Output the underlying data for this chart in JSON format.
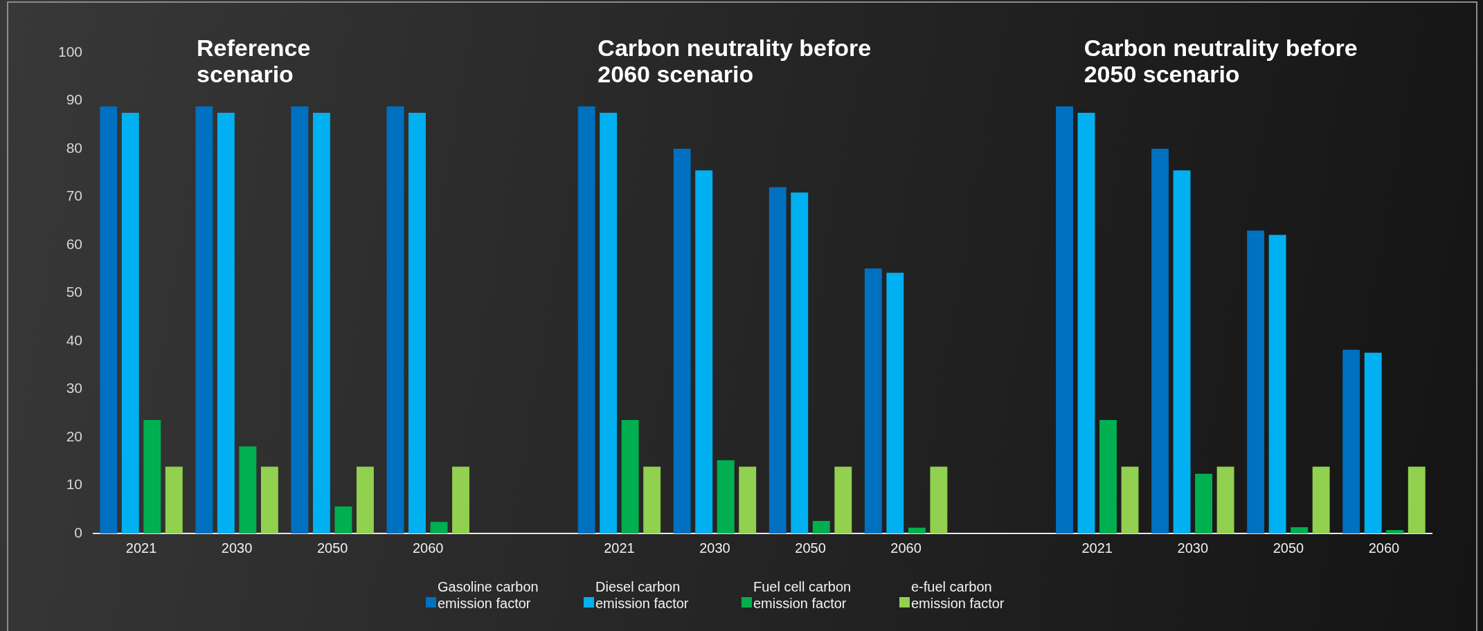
{
  "chart_data": {
    "type": "bar",
    "categories": [
      "2021",
      "2030",
      "2050",
      "2060",
      null,
      "2021",
      "2030",
      "2050",
      "2060",
      null,
      "2021",
      "2030",
      "2050",
      "2060"
    ],
    "series": [
      {
        "name": "Gasoline carbon emission factor",
        "color": "#0070c0",
        "values": [
          88.8,
          88.8,
          88.8,
          88.8,
          null,
          88.8,
          80.0,
          72.0,
          55.1,
          null,
          88.8,
          80.0,
          63.0,
          38.2
        ]
      },
      {
        "name": "Diesel carbon emission factor",
        "color": "#00b0f0",
        "values": [
          87.5,
          87.5,
          87.5,
          87.5,
          null,
          87.5,
          75.5,
          70.9,
          54.2,
          null,
          87.5,
          75.5,
          62.1,
          37.6
        ]
      },
      {
        "name": "Fuel cell carbon emission factor",
        "color": "#00b050",
        "values": [
          23.6,
          18.1,
          5.6,
          2.4,
          null,
          23.6,
          15.2,
          2.6,
          1.2,
          null,
          23.6,
          12.4,
          1.3,
          0.7
        ]
      },
      {
        "name": "e-fuel carbon emission factor",
        "color": "#92d050",
        "values": [
          13.9,
          13.9,
          13.9,
          13.9,
          null,
          13.9,
          13.9,
          13.9,
          13.9,
          null,
          13.9,
          13.9,
          13.9,
          13.9
        ]
      }
    ],
    "ylim": [
      0,
      100
    ],
    "yticks": [
      0,
      10,
      20,
      30,
      40,
      50,
      60,
      70,
      80,
      90,
      100
    ],
    "legend": "bottom",
    "annotations": [
      "Reference scenario",
      "Carbon neutrality before 2060 scenario",
      "Carbon neutrality before 2050 scenario"
    ]
  }
}
